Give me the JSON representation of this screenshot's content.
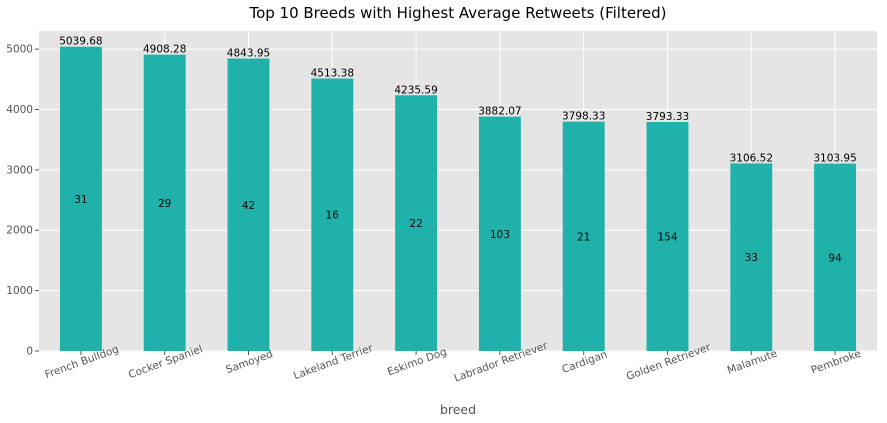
{
  "chart_data": {
    "type": "bar",
    "title": "Top 10 Breeds with Highest Average Retweets (Filtered)",
    "xlabel": "breed",
    "ylabel": "",
    "ylim": [
      0,
      5300
    ],
    "yticks": [
      0,
      1000,
      2000,
      3000,
      4000,
      5000
    ],
    "grid": true,
    "legend": "none",
    "bar_color": "#20b2aa",
    "background_color": "#e5e5e5",
    "categories": [
      "French Bulldog",
      "Cocker Spaniel",
      "Samoyed",
      "Lakeland Terrier",
      "Eskimo Dog",
      "Labrador Retriever",
      "Cardigan",
      "Golden Retriever",
      "Malamute",
      "Pembroke"
    ],
    "values": [
      5039.68,
      4908.28,
      4843.95,
      4513.38,
      4235.59,
      3882.07,
      3798.33,
      3793.33,
      3106.52,
      3103.95
    ],
    "value_labels": [
      "5039.68",
      "4908.28",
      "4843.95",
      "4513.38",
      "4235.59",
      "3882.07",
      "3798.33",
      "3793.33",
      "3106.52",
      "3103.95"
    ],
    "count_labels": [
      "31",
      "29",
      "42",
      "16",
      "22",
      "103",
      "21",
      "154",
      "33",
      "94"
    ]
  }
}
